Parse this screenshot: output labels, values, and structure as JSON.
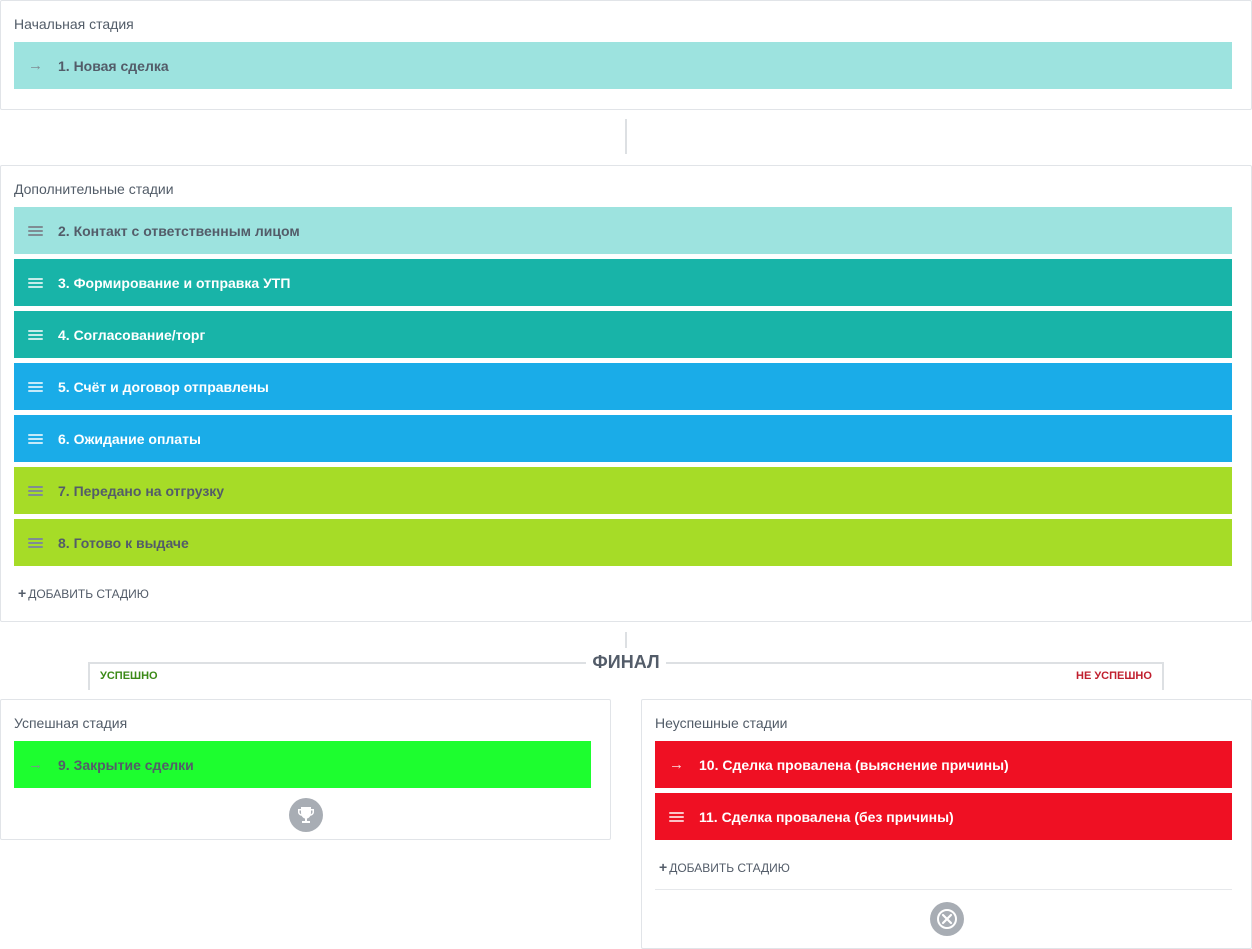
{
  "initial": {
    "title": "Начальная стадия",
    "stage": {
      "label": "1. Новая сделка",
      "color": "#9de3df"
    }
  },
  "extra": {
    "title": "Дополнительные стадии",
    "stages": [
      {
        "label": "2. Контакт с ответственным лицом",
        "color": "#9de3df"
      },
      {
        "label": "3. Формирование и отправка УТП",
        "color": "#18b4a8"
      },
      {
        "label": "4. Согласование/торг",
        "color": "#18b4a8"
      },
      {
        "label": "5. Счёт и договор отправлены",
        "color": "#1aace8"
      },
      {
        "label": "6. Ожидание оплаты",
        "color": "#1aace8"
      },
      {
        "label": "7. Передано на отгрузку",
        "color": "#a6dc27"
      },
      {
        "label": "8. Готово к выдаче",
        "color": "#a6dc27"
      }
    ],
    "add_label": "ДОБАВИТЬ СТАДИЮ"
  },
  "final": {
    "title": "ФИНАЛ",
    "success_label": "УСПЕШНО",
    "fail_label": "НЕ УСПЕШНО",
    "success_color": "#3b8a17",
    "fail_color": "#c01f2e"
  },
  "success": {
    "title": "Успешная стадия",
    "stage": {
      "label": "9. Закрытие сделки",
      "color": "#1dfe2f"
    },
    "icon": "trophy-icon"
  },
  "fail": {
    "title": "Неуспешные стадии",
    "stages": [
      {
        "label": "10. Сделка провалена (выяснение причины)",
        "color": "#ef1023"
      },
      {
        "label": "11. Сделка провалена (без причины)",
        "color": "#ef1023"
      }
    ],
    "add_label": "ДОБАВИТЬ СТАДИЮ",
    "icon": "close-circle-icon"
  }
}
